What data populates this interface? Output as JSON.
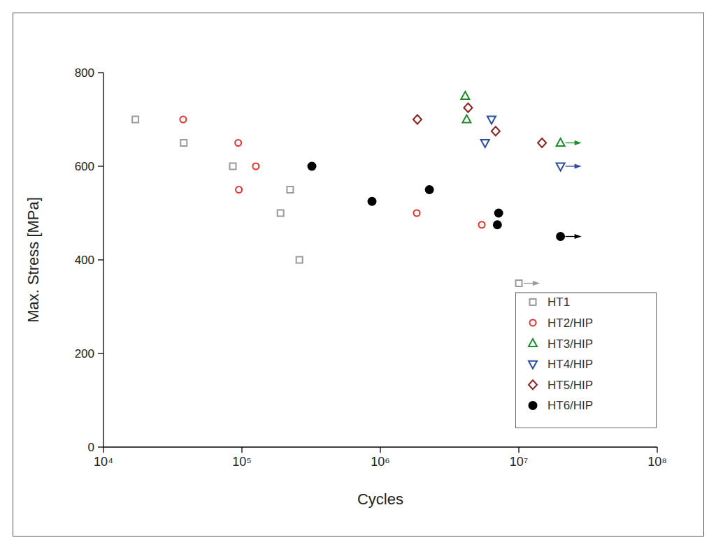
{
  "chart_data": {
    "type": "scatter",
    "x_label": "Cycles",
    "y_label": "Max. Stress [MPa]",
    "log": "x",
    "grid": false,
    "legend": "lower right",
    "xlim": [
      10000,
      100000000
    ],
    "xticks": [
      {
        "value": 10000,
        "label": "10⁴"
      },
      {
        "value": 100000,
        "label": "10⁵"
      },
      {
        "value": 1000000,
        "label": "10⁶"
      },
      {
        "value": 10000000,
        "label": "10⁷"
      },
      {
        "value": 100000000,
        "label": "10⁸"
      }
    ],
    "ylim": [
      0,
      800
    ],
    "yticks": [
      0,
      200,
      400,
      600,
      800
    ],
    "series": [
      {
        "name": "HT1",
        "color": "#9a9a9a",
        "marker": "square",
        "x": [
          17000,
          38000,
          86000,
          223000,
          190000,
          260000,
          10000000
        ],
        "values": [
          700,
          650,
          600,
          550,
          500,
          400,
          350
        ],
        "runouts": [
          false,
          false,
          false,
          false,
          false,
          false,
          true
        ]
      },
      {
        "name": "HT2/HIP",
        "color": "#e8302e",
        "marker": "circle",
        "x": [
          37600,
          94000,
          126000,
          95000,
          1830000,
          5400000
        ],
        "values": [
          700,
          650,
          600,
          550,
          500,
          475
        ],
        "runouts": [
          false,
          false,
          false,
          false,
          false,
          false
        ]
      },
      {
        "name": "HT3/HIP",
        "color": "#1f8c2c",
        "marker": "triangle-up",
        "x": [
          4100000,
          4200000,
          20000000
        ],
        "values": [
          750,
          700,
          650
        ],
        "runouts": [
          false,
          false,
          true
        ]
      },
      {
        "name": "HT4/HIP",
        "color": "#2c4ca2",
        "marker": "triangle-down",
        "x": [
          6350000,
          5700000,
          20000000
        ],
        "values": [
          700,
          650,
          600
        ],
        "runouts": [
          false,
          false,
          true
        ]
      },
      {
        "name": "HT5/HIP",
        "color": "#8c2323",
        "marker": "diamond",
        "x": [
          1850000,
          4300000,
          6800000,
          14700000
        ],
        "values": [
          700,
          725,
          675,
          650
        ],
        "runouts": [
          false,
          false,
          false,
          false
        ]
      },
      {
        "name": "HT6/HIP",
        "color": "#000000",
        "marker": "filled-circle",
        "x": [
          320000,
          870000,
          2260000,
          7150000,
          7000000,
          20000000
        ],
        "values": [
          600,
          525,
          550,
          500,
          475,
          450
        ],
        "runouts": [
          false,
          false,
          false,
          false,
          false,
          true
        ]
      }
    ]
  }
}
